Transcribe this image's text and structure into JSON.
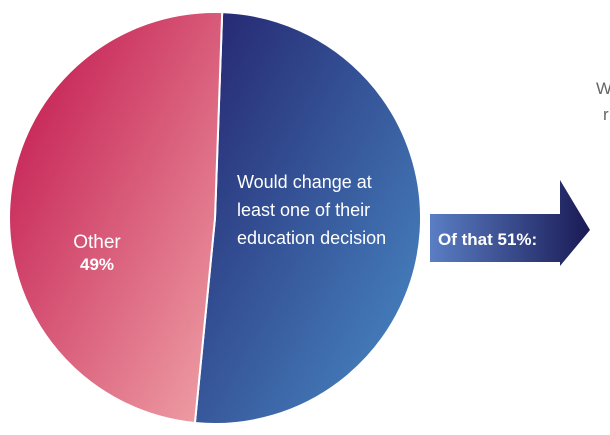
{
  "chart_data": {
    "type": "pie",
    "slices": [
      {
        "label_lines": [
          "Would change at",
          "least one of their",
          "education decision"
        ],
        "value": 51,
        "value_label": "",
        "color_start": "#24246e",
        "color_end": "#4a8cc8"
      },
      {
        "label_lines": [
          "Other"
        ],
        "value": 49,
        "value_label": "49%",
        "color_start": "#c0104a",
        "color_end": "#f0a4a8"
      }
    ]
  },
  "arrow": {
    "label": "Of that 51%:",
    "color_start": "#5a7ec4",
    "color_end": "#1a1a55"
  },
  "cut_off_text": {
    "line1": "W",
    "line2": "r"
  }
}
